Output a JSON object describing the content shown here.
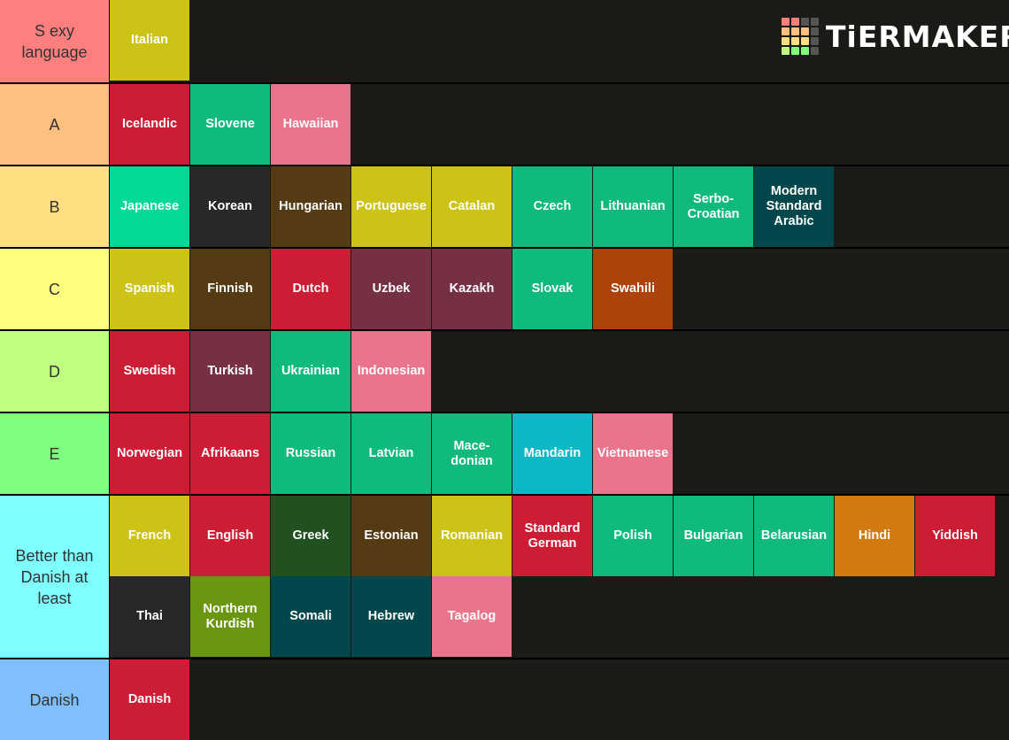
{
  "logo": {
    "text": "TiERMAKER"
  },
  "tiers": [
    {
      "label": "S exy language",
      "color": "#ff7f7f",
      "items": [
        {
          "name": "Italian",
          "color": "#cdc216"
        }
      ]
    },
    {
      "label": "A",
      "color": "#ffbf7f",
      "items": [
        {
          "name": "Icelandic",
          "color": "#cc1d34"
        },
        {
          "name": "Slovene",
          "color": "#0fba7c"
        },
        {
          "name": "Hawaiian",
          "color": "#e9748b"
        }
      ]
    },
    {
      "label": "B",
      "color": "#ffdf7f",
      "items": [
        {
          "name": "Japanese",
          "color": "#04d896"
        },
        {
          "name": "Korean",
          "color": "#28272a"
        },
        {
          "name": "Hungarian",
          "color": "#553b13"
        },
        {
          "name": "Portuguese",
          "color": "#cdc216"
        },
        {
          "name": "Catalan",
          "color": "#cdc216"
        },
        {
          "name": "Czech",
          "color": "#0fba7c"
        },
        {
          "name": "Lithuanian",
          "color": "#0fba7c"
        },
        {
          "name": "Serbo-Croatian",
          "color": "#0fba7c"
        },
        {
          "name": "Modern Standard Arabic",
          "color": "#02474b"
        }
      ]
    },
    {
      "label": "C",
      "color": "#ffff7f",
      "items": [
        {
          "name": "Spanish",
          "color": "#cdc216"
        },
        {
          "name": "Finnish",
          "color": "#553b13"
        },
        {
          "name": "Dutch",
          "color": "#cc1d34"
        },
        {
          "name": "Uzbek",
          "color": "#763044"
        },
        {
          "name": "Kazakh",
          "color": "#763044"
        },
        {
          "name": "Slovak",
          "color": "#0fba7c"
        },
        {
          "name": "Swahili",
          "color": "#ad430b"
        }
      ]
    },
    {
      "label": "D",
      "color": "#bfff7f",
      "items": [
        {
          "name": "Swedish",
          "color": "#cc1d34"
        },
        {
          "name": "Turkish",
          "color": "#763044"
        },
        {
          "name": "Ukrainian",
          "color": "#0fba7c"
        },
        {
          "name": "Indonesian",
          "color": "#e9748b"
        }
      ]
    },
    {
      "label": "E",
      "color": "#7fff7f",
      "items": [
        {
          "name": "Norwegian",
          "color": "#cc1d34"
        },
        {
          "name": "Afrikaans",
          "color": "#cc1d34"
        },
        {
          "name": "Russian",
          "color": "#0fba7c"
        },
        {
          "name": "Latvian",
          "color": "#0fba7c"
        },
        {
          "name": "Mace-donian",
          "color": "#0fba7c"
        },
        {
          "name": "Mandarin",
          "color": "#0db8c6"
        },
        {
          "name": "Vietnamese",
          "color": "#e9748b"
        }
      ]
    },
    {
      "label": "Better than Danish at least",
      "color": "#7fffff",
      "items": [
        {
          "name": "French",
          "color": "#cdc216"
        },
        {
          "name": "English",
          "color": "#cc1d34"
        },
        {
          "name": "Greek",
          "color": "#215021"
        },
        {
          "name": "Estonian",
          "color": "#553b13"
        },
        {
          "name": "Romanian",
          "color": "#cdc216"
        },
        {
          "name": "Standard German",
          "color": "#cc1d34"
        },
        {
          "name": "Polish",
          "color": "#0fba7c"
        },
        {
          "name": "Bulgarian",
          "color": "#0fba7c"
        },
        {
          "name": "Belarusian",
          "color": "#0fba7c"
        },
        {
          "name": "Hindi",
          "color": "#d27a10"
        },
        {
          "name": "Yiddish",
          "color": "#cc1d34"
        },
        {
          "name": "Thai",
          "color": "#28272a"
        },
        {
          "name": "Northern Kurdish",
          "color": "#6a970f"
        },
        {
          "name": "Somali",
          "color": "#02474b"
        },
        {
          "name": "Hebrew",
          "color": "#02474b"
        },
        {
          "name": "Tagalog",
          "color": "#e9748b"
        }
      ]
    },
    {
      "label": "Danish",
      "color": "#7fbfff",
      "items": [
        {
          "name": "Danish",
          "color": "#cc1d34"
        }
      ]
    }
  ]
}
